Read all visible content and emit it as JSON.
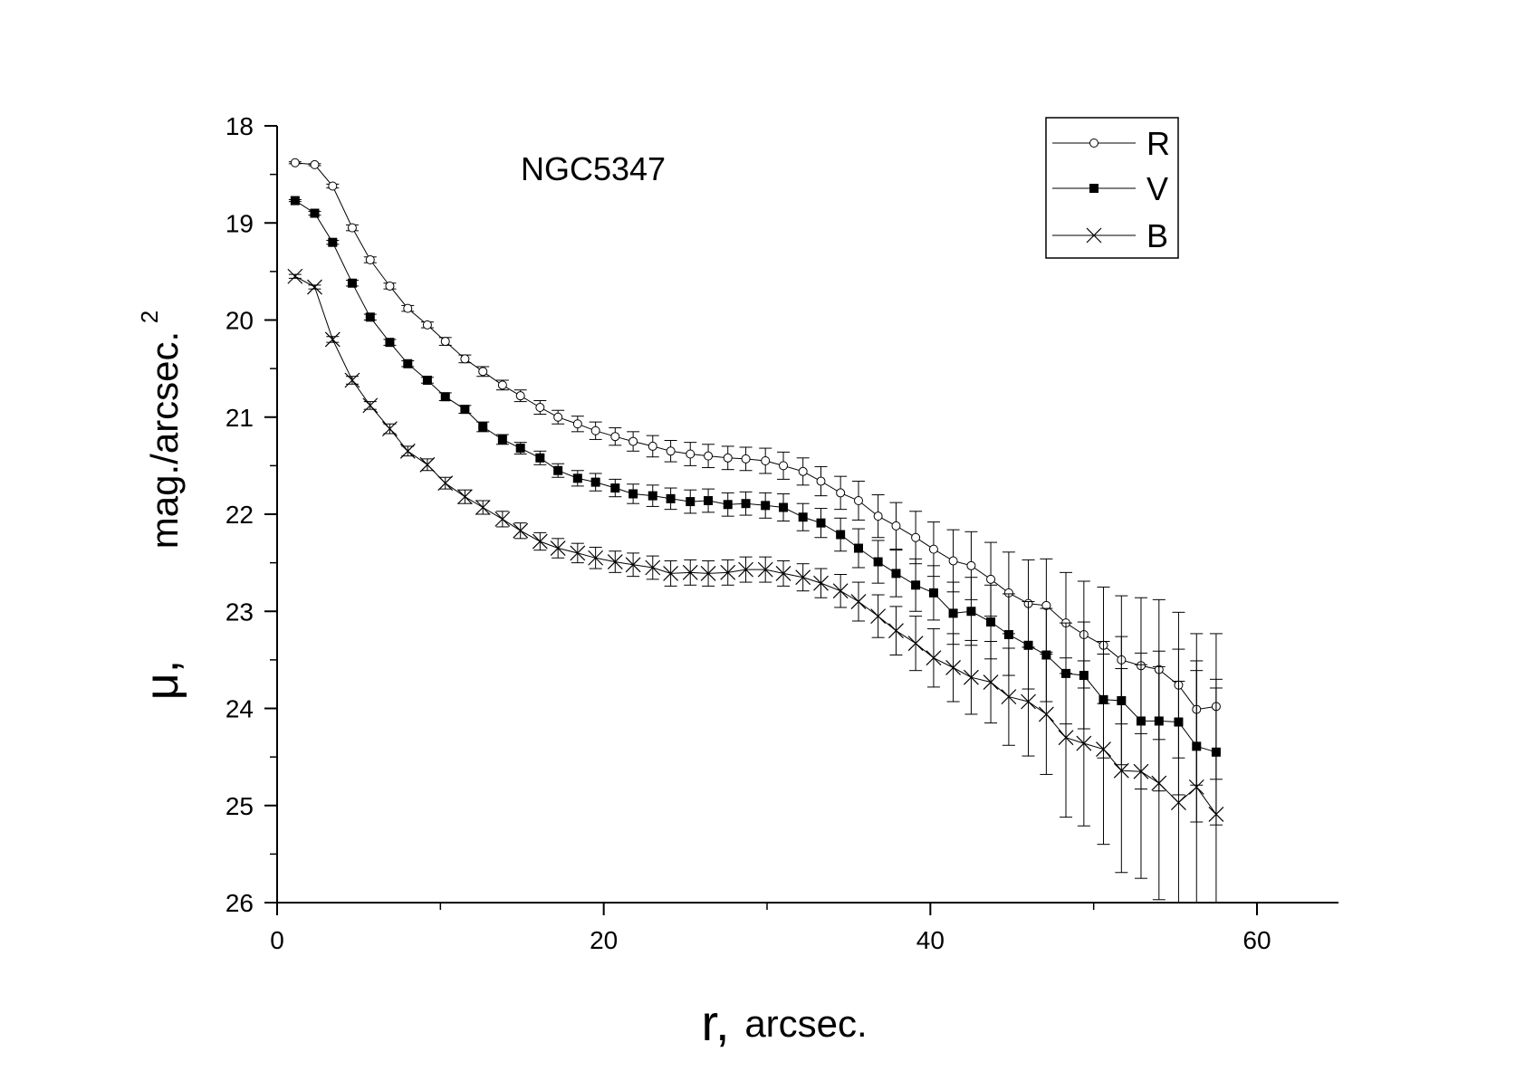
{
  "chart_data": {
    "type": "line",
    "title": "NGC5347",
    "xlabel": "arcsec.",
    "xlabel_symbol": "r,",
    "ylabel": "mag./arcsec.",
    "ylabel_symbol": "μ,",
    "ylabel_exponent": "2",
    "xlim": [
      0,
      65
    ],
    "ylim": [
      26,
      18
    ],
    "y_inverted": true,
    "x_ticks": [
      0,
      20,
      40,
      60
    ],
    "x_tick_labels": [
      "0",
      "20",
      "40",
      "60"
    ],
    "y_ticks": [
      18,
      19,
      20,
      21,
      22,
      23,
      24,
      25,
      26
    ],
    "y_tick_labels": [
      "18",
      "19",
      "20",
      "21",
      "22",
      "23",
      "24",
      "25",
      "26"
    ],
    "grid": false,
    "legend_position": "top-right",
    "series": [
      {
        "name": "R",
        "marker": "open-circle",
        "x": [
          1.1,
          2.3,
          3.4,
          4.6,
          5.7,
          6.9,
          8.0,
          9.2,
          10.3,
          11.5,
          12.6,
          13.8,
          14.9,
          16.1,
          17.2,
          18.4,
          19.5,
          20.7,
          21.8,
          23.0,
          24.1,
          25.3,
          26.4,
          27.6,
          28.7,
          29.9,
          31.0,
          32.2,
          33.3,
          34.5,
          35.6,
          36.8,
          37.9,
          39.1,
          40.2,
          41.4,
          42.5,
          43.7,
          44.8,
          46.0,
          47.1,
          48.3,
          49.4,
          50.6,
          51.7,
          52.9,
          54.0,
          55.2,
          56.3,
          57.5
        ],
        "y": [
          18.38,
          18.4,
          18.62,
          19.05,
          19.38,
          19.65,
          19.88,
          20.05,
          20.22,
          20.4,
          20.53,
          20.67,
          20.78,
          20.9,
          21.0,
          21.07,
          21.14,
          21.2,
          21.25,
          21.3,
          21.35,
          21.38,
          21.4,
          21.42,
          21.43,
          21.45,
          21.5,
          21.56,
          21.66,
          21.78,
          21.86,
          22.02,
          22.12,
          22.24,
          22.36,
          22.48,
          22.53,
          22.67,
          22.81,
          22.92,
          22.94,
          23.12,
          23.24,
          23.35,
          23.5,
          23.56,
          23.6,
          23.76,
          24.01,
          23.98
        ],
        "err": [
          0.01,
          0.01,
          0.02,
          0.03,
          0.03,
          0.03,
          0.03,
          0.03,
          0.04,
          0.04,
          0.05,
          0.05,
          0.06,
          0.07,
          0.07,
          0.08,
          0.09,
          0.09,
          0.1,
          0.11,
          0.11,
          0.12,
          0.12,
          0.12,
          0.12,
          0.13,
          0.14,
          0.14,
          0.15,
          0.17,
          0.2,
          0.22,
          0.24,
          0.27,
          0.28,
          0.32,
          0.35,
          0.38,
          0.42,
          0.45,
          0.48,
          0.52,
          0.55,
          0.6,
          0.66,
          0.7,
          0.72,
          0.75,
          0.78,
          0.75
        ]
      },
      {
        "name": "V",
        "marker": "filled-square",
        "x": [
          1.1,
          2.3,
          3.4,
          4.6,
          5.7,
          6.9,
          8.0,
          9.2,
          10.3,
          11.5,
          12.6,
          13.8,
          14.9,
          16.1,
          17.2,
          18.4,
          19.5,
          20.7,
          21.8,
          23.0,
          24.1,
          25.3,
          26.4,
          27.6,
          28.7,
          29.9,
          31.0,
          32.2,
          33.3,
          34.5,
          35.6,
          36.8,
          37.9,
          39.1,
          40.2,
          41.4,
          42.5,
          43.7,
          44.8,
          46.0,
          47.1,
          48.3,
          49.4,
          50.6,
          51.7,
          52.9,
          54.0,
          55.2,
          56.3,
          57.5
        ],
        "y": [
          18.77,
          18.9,
          19.2,
          19.62,
          19.97,
          20.23,
          20.45,
          20.62,
          20.79,
          20.92,
          21.1,
          21.23,
          21.32,
          21.42,
          21.55,
          21.63,
          21.67,
          21.73,
          21.79,
          21.81,
          21.84,
          21.87,
          21.86,
          21.9,
          21.89,
          21.91,
          21.93,
          22.03,
          22.09,
          22.21,
          22.35,
          22.49,
          22.61,
          22.73,
          22.81,
          23.02,
          23.0,
          23.11,
          23.24,
          23.35,
          23.45,
          23.64,
          23.66,
          23.91,
          23.92,
          24.13,
          24.13,
          24.14,
          24.39,
          24.45
        ],
        "err": [
          0.01,
          0.02,
          0.02,
          0.03,
          0.03,
          0.03,
          0.03,
          0.03,
          0.04,
          0.04,
          0.05,
          0.05,
          0.06,
          0.07,
          0.07,
          0.08,
          0.09,
          0.09,
          0.1,
          0.11,
          0.11,
          0.12,
          0.12,
          0.12,
          0.12,
          0.13,
          0.14,
          0.14,
          0.15,
          0.17,
          0.2,
          0.22,
          0.24,
          0.27,
          0.28,
          0.32,
          0.35,
          0.38,
          0.42,
          0.45,
          0.48,
          0.52,
          0.55,
          0.6,
          0.66,
          0.7,
          0.72,
          0.75,
          0.78,
          0.75
        ]
      },
      {
        "name": "B",
        "marker": "cross",
        "x": [
          1.1,
          2.3,
          3.4,
          4.6,
          5.7,
          6.9,
          8.0,
          9.2,
          10.3,
          11.5,
          12.6,
          13.8,
          14.9,
          16.1,
          17.2,
          18.4,
          19.5,
          20.7,
          21.8,
          23.0,
          24.1,
          25.3,
          26.4,
          27.6,
          28.7,
          29.9,
          31.0,
          32.2,
          33.3,
          34.5,
          35.6,
          36.8,
          37.9,
          39.1,
          40.2,
          41.4,
          42.5,
          43.7,
          44.8,
          46.0,
          47.1,
          48.3,
          49.4,
          50.6,
          51.7,
          52.9,
          54.0,
          55.2,
          56.3,
          57.5
        ],
        "y": [
          19.55,
          19.66,
          20.2,
          20.62,
          20.88,
          21.12,
          21.35,
          21.49,
          21.68,
          21.82,
          21.93,
          22.05,
          22.17,
          22.28,
          22.35,
          22.4,
          22.45,
          22.49,
          22.52,
          22.55,
          22.61,
          22.6,
          22.61,
          22.6,
          22.57,
          22.57,
          22.61,
          22.65,
          22.71,
          22.79,
          22.9,
          23.05,
          23.2,
          23.33,
          23.48,
          23.58,
          23.68,
          23.73,
          23.88,
          23.93,
          24.06,
          24.3,
          24.36,
          24.42,
          24.64,
          24.65,
          24.77,
          24.97,
          24.81,
          25.09
        ],
        "err": [
          0.02,
          0.02,
          0.03,
          0.04,
          0.04,
          0.05,
          0.05,
          0.06,
          0.06,
          0.07,
          0.07,
          0.08,
          0.08,
          0.09,
          0.1,
          0.1,
          0.11,
          0.11,
          0.12,
          0.12,
          0.13,
          0.13,
          0.13,
          0.13,
          0.13,
          0.13,
          0.13,
          0.14,
          0.15,
          0.17,
          0.2,
          0.22,
          0.25,
          0.28,
          0.3,
          0.35,
          0.38,
          0.42,
          0.5,
          0.56,
          0.62,
          0.82,
          0.85,
          0.98,
          1.05,
          1.1,
          1.2,
          1.25,
          1.3,
          1.3
        ]
      }
    ]
  }
}
